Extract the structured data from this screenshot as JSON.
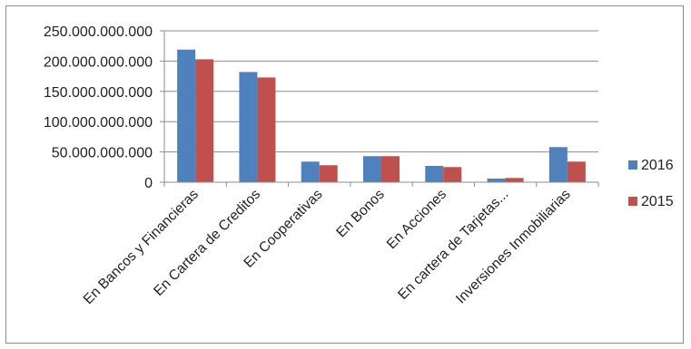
{
  "chart_data": {
    "type": "bar",
    "categories": [
      "En Bancos y Financieras",
      "En Cartera de Creditos",
      "En Cooperativas",
      "En Bonos",
      "En Acciones",
      "En cartera de Tarjetas...",
      "Inversiones Inmobiliarias"
    ],
    "series": [
      {
        "name": "2016",
        "color": "#4f81bd",
        "values": [
          219000000000,
          182000000000,
          34000000000,
          43000000000,
          27000000000,
          6000000000,
          58000000000
        ]
      },
      {
        "name": "2015",
        "color": "#c0504d",
        "values": [
          203000000000,
          173000000000,
          28000000000,
          43000000000,
          25000000000,
          7000000000,
          34000000000
        ]
      }
    ],
    "y_ticks": [
      "0",
      "50.000.000.000",
      "100.000.000.000",
      "150.000.000.000",
      "200.000.000.000",
      "250.000.000.000"
    ],
    "ylim": [
      0,
      250000000000
    ],
    "grid": true,
    "legend": "right"
  }
}
